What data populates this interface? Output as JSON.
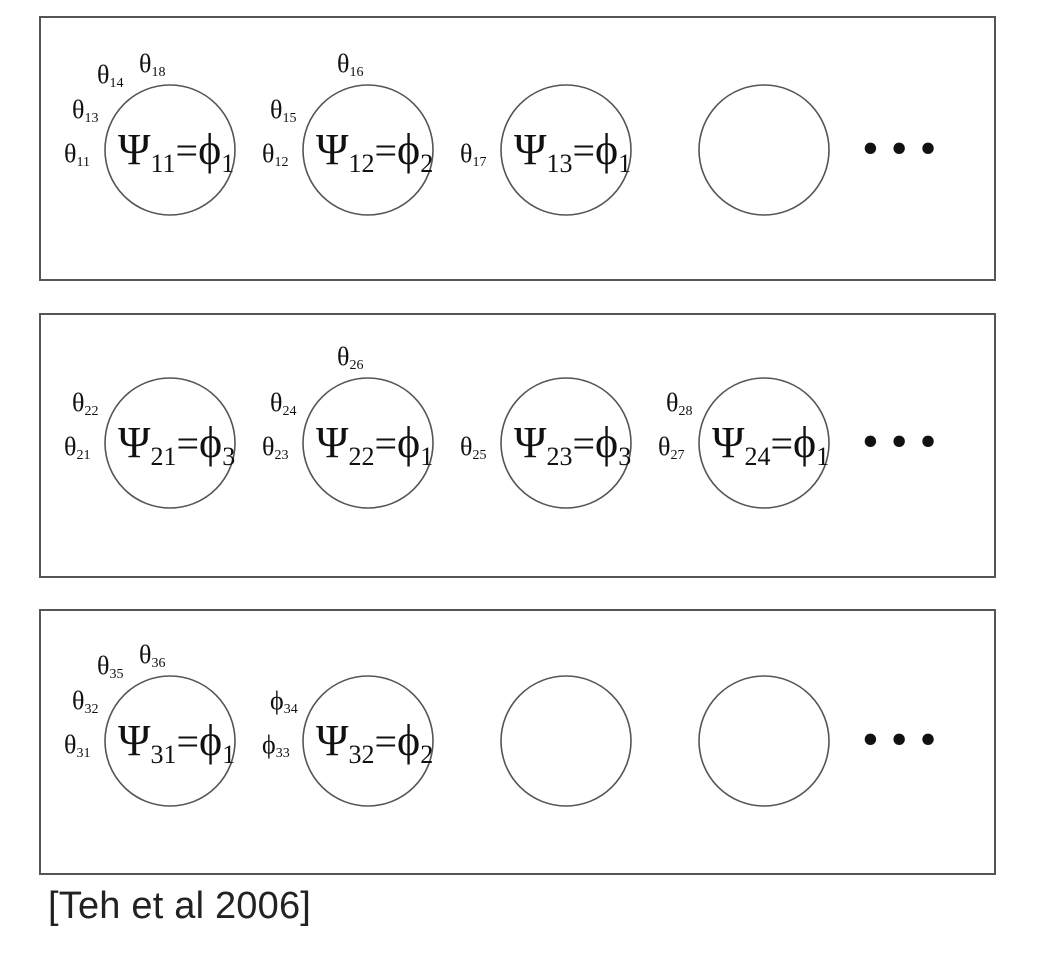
{
  "caption": "[Teh et al 2006]",
  "colors": {
    "stroke": "#555555",
    "text": "#111111",
    "background": "#ffffff"
  },
  "rows": [
    {
      "tables": [
        {
          "psi": "11",
          "phi": "1",
          "thetas": [
            "11",
            "13",
            "14",
            "18"
          ],
          "theta_symbol": "θ"
        },
        {
          "psi": "12",
          "phi": "2",
          "thetas": [
            "12",
            "15",
            "16"
          ],
          "theta_symbol": "θ"
        },
        {
          "psi": "13",
          "phi": "1",
          "thetas": [
            "17"
          ],
          "theta_symbol": "θ"
        },
        {
          "psi": "",
          "phi": "",
          "thetas": [],
          "theta_symbol": "θ"
        }
      ],
      "ellipsis": "• • •"
    },
    {
      "tables": [
        {
          "psi": "21",
          "phi": "3",
          "thetas": [
            "21",
            "22"
          ],
          "theta_symbol": "θ"
        },
        {
          "psi": "22",
          "phi": "1",
          "thetas": [
            "23",
            "24",
            "26"
          ],
          "theta_symbol": "θ"
        },
        {
          "psi": "23",
          "phi": "3",
          "thetas": [
            "25"
          ],
          "theta_symbol": "θ"
        },
        {
          "psi": "24",
          "phi": "1",
          "thetas": [
            "27",
            "28"
          ],
          "theta_symbol": "θ"
        }
      ],
      "ellipsis": "• • •"
    },
    {
      "tables": [
        {
          "psi": "31",
          "phi": "1",
          "thetas": [
            "31",
            "32",
            "35",
            "36"
          ],
          "theta_symbol": "θ"
        },
        {
          "psi": "32",
          "phi": "2",
          "thetas": [
            "33",
            "34"
          ],
          "theta_symbol": "ϕ"
        },
        {
          "psi": "",
          "phi": "",
          "thetas": [],
          "theta_symbol": "θ"
        },
        {
          "psi": "",
          "phi": "",
          "thetas": [],
          "theta_symbol": "θ"
        }
      ],
      "ellipsis": "• • •"
    }
  ]
}
